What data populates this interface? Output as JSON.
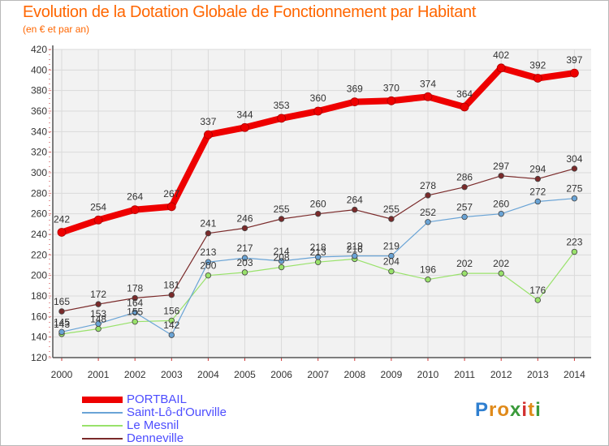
{
  "header": {
    "title": "Evolution de la Dotation Globale de Fonctionnement par Habitant",
    "subtitle": "(en € et par an)"
  },
  "chart_data": {
    "type": "line",
    "title": "Evolution de la Dotation Globale de Fonctionnement par Habitant",
    "subtitle": "(en € et par an)",
    "xlabel": "",
    "ylabel": "",
    "x": [
      "2000",
      "2001",
      "2002",
      "2003",
      "2004",
      "2005",
      "2006",
      "2007",
      "2008",
      "2009",
      "2010",
      "2011",
      "2012",
      "2013",
      "2014"
    ],
    "ylim": [
      120,
      420
    ],
    "yticks": [
      120,
      140,
      160,
      180,
      200,
      220,
      240,
      260,
      280,
      300,
      320,
      340,
      360,
      380,
      400,
      420
    ],
    "grid": true,
    "legend_position": "bottom-left",
    "series": [
      {
        "name": "PORTBAIL",
        "color": "#ee0000",
        "values": [
          242,
          254,
          264,
          267,
          337,
          344,
          353,
          360,
          369,
          370,
          374,
          364,
          402,
          392,
          397
        ],
        "labels": [
          "242",
          "254",
          "264",
          "267",
          "337",
          "344",
          "353",
          "360",
          "369",
          "370",
          "374",
          "364",
          "402",
          "392",
          "397"
        ]
      },
      {
        "name": "Saint-Lô-d'Ourville",
        "color": "#6aa4d6",
        "values": [
          145,
          153,
          164,
          142,
          213,
          217,
          214,
          218,
          219,
          219,
          252,
          257,
          260,
          272,
          275
        ],
        "labels": [
          "145",
          "153",
          "164",
          "142",
          "213",
          "217",
          "214",
          "218",
          "219",
          "219",
          "252",
          "257",
          "260",
          "272",
          "275"
        ]
      },
      {
        "name": "Le Mesnil",
        "color": "#99e26b",
        "values": [
          143,
          148,
          155,
          156,
          200,
          203,
          208,
          213,
          216,
          204,
          196,
          202,
          202,
          176,
          223
        ],
        "labels": [
          "143",
          "148",
          "155",
          "156",
          "200",
          "203",
          "208",
          "213",
          "216",
          "204",
          "196",
          "202",
          "202",
          "176",
          "223"
        ]
      },
      {
        "name": "Denneville",
        "color": "#7a2a2a",
        "values": [
          165,
          172,
          178,
          181,
          241,
          246,
          255,
          260,
          264,
          255,
          278,
          286,
          297,
          294,
          304
        ],
        "labels": [
          "165",
          "172",
          "178",
          "181",
          "241",
          "246",
          "255",
          "260",
          "264",
          "255",
          "278",
          "286",
          "297",
          "294",
          "304"
        ]
      }
    ]
  },
  "legend": {
    "items": [
      {
        "label": "PORTBAIL",
        "color": "#ee0000"
      },
      {
        "label": "Saint-Lô-d'Ourville",
        "color": "#6aa4d6"
      },
      {
        "label": "Le Mesnil",
        "color": "#99e26b"
      },
      {
        "label": "Denneville",
        "color": "#7a2a2a"
      }
    ]
  },
  "logo": {
    "letters": [
      "P",
      "r",
      "o",
      "x",
      "i",
      "t",
      "i"
    ],
    "colors": [
      "#2f7fd0",
      "#e08a1a",
      "#e08a1a",
      "#3a9a3a",
      "#d23030",
      "#e08a1a",
      "#3a9a3a"
    ]
  }
}
